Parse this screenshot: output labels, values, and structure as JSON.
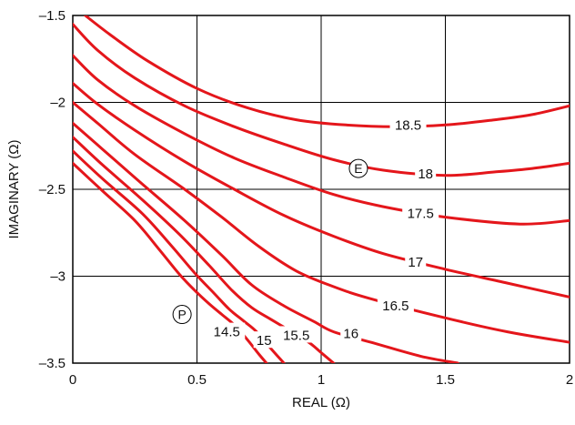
{
  "chart_data": {
    "type": "contour",
    "xlabel": "REAL (Ω)",
    "ylabel": "IMAGINARY (Ω)",
    "xlim": [
      0,
      2
    ],
    "ylim": [
      -3.5,
      -1.5
    ],
    "x_ticks": [
      0,
      0.5,
      1,
      1.5,
      2
    ],
    "x_tick_labels": [
      "0",
      "0.5",
      "1",
      "1.5",
      "2"
    ],
    "y_ticks": [
      -1.5,
      -2,
      -2.5,
      -3,
      -3.5
    ],
    "y_tick_labels": [
      "–1.5",
      "–2",
      "–2.5",
      "–3",
      "–3.5"
    ],
    "grid": true,
    "line_color": "#e4161b",
    "contours": [
      {
        "level": "18.5",
        "label_at": [
          1.35,
          -2.13
        ],
        "points": [
          [
            0.05,
            -1.5
          ],
          [
            0.15,
            -1.61
          ],
          [
            0.3,
            -1.76
          ],
          [
            0.5,
            -1.92
          ],
          [
            0.7,
            -2.03
          ],
          [
            0.9,
            -2.1
          ],
          [
            1.1,
            -2.13
          ],
          [
            1.3,
            -2.14
          ],
          [
            1.5,
            -2.13
          ],
          [
            1.7,
            -2.1
          ],
          [
            1.85,
            -2.07
          ],
          [
            2.0,
            -2.02
          ]
        ]
      },
      {
        "level": "18",
        "label_at": [
          1.42,
          -2.41
        ],
        "points": [
          [
            0,
            -1.55
          ],
          [
            0.1,
            -1.7
          ],
          [
            0.25,
            -1.86
          ],
          [
            0.45,
            -2.02
          ],
          [
            0.65,
            -2.14
          ],
          [
            0.85,
            -2.24
          ],
          [
            1.05,
            -2.33
          ],
          [
            1.25,
            -2.39
          ],
          [
            1.5,
            -2.42
          ],
          [
            1.7,
            -2.4
          ],
          [
            1.85,
            -2.38
          ],
          [
            2.0,
            -2.35
          ]
        ]
      },
      {
        "level": "17.5",
        "label_at": [
          1.4,
          -2.64
        ],
        "points": [
          [
            0,
            -1.73
          ],
          [
            0.1,
            -1.87
          ],
          [
            0.25,
            -2.02
          ],
          [
            0.45,
            -2.18
          ],
          [
            0.65,
            -2.32
          ],
          [
            0.85,
            -2.43
          ],
          [
            1.05,
            -2.53
          ],
          [
            1.25,
            -2.6
          ],
          [
            1.5,
            -2.66
          ],
          [
            1.8,
            -2.7
          ],
          [
            2.0,
            -2.68
          ]
        ]
      },
      {
        "level": "17",
        "label_at": [
          1.38,
          -2.92
        ],
        "points": [
          [
            0,
            -1.89
          ],
          [
            0.1,
            -2.01
          ],
          [
            0.25,
            -2.16
          ],
          [
            0.45,
            -2.34
          ],
          [
            0.65,
            -2.5
          ],
          [
            0.85,
            -2.65
          ],
          [
            1.05,
            -2.77
          ],
          [
            1.25,
            -2.87
          ],
          [
            1.5,
            -2.96
          ],
          [
            1.75,
            -3.04
          ],
          [
            2.0,
            -3.12
          ]
        ]
      },
      {
        "level": "16.5",
        "label_at": [
          1.3,
          -3.17
        ],
        "points": [
          [
            0,
            -2.0
          ],
          [
            0.1,
            -2.12
          ],
          [
            0.25,
            -2.3
          ],
          [
            0.45,
            -2.5
          ],
          [
            0.6,
            -2.66
          ],
          [
            0.75,
            -2.83
          ],
          [
            0.9,
            -2.97
          ],
          [
            1.05,
            -3.06
          ],
          [
            1.2,
            -3.13
          ],
          [
            1.5,
            -3.24
          ],
          [
            1.75,
            -3.32
          ],
          [
            2.0,
            -3.38
          ]
        ]
      },
      {
        "level": "16",
        "label_at": [
          1.12,
          -3.33
        ],
        "points": [
          [
            0,
            -2.12
          ],
          [
            0.12,
            -2.27
          ],
          [
            0.28,
            -2.47
          ],
          [
            0.45,
            -2.68
          ],
          [
            0.6,
            -2.88
          ],
          [
            0.72,
            -3.05
          ],
          [
            0.85,
            -3.17
          ],
          [
            0.97,
            -3.26
          ],
          [
            1.05,
            -3.32
          ],
          [
            1.2,
            -3.38
          ],
          [
            1.4,
            -3.46
          ],
          [
            1.55,
            -3.5
          ]
        ]
      },
      {
        "level": "15.5",
        "label_at": [
          0.9,
          -3.34
        ],
        "points": [
          [
            0,
            -2.2
          ],
          [
            0.12,
            -2.36
          ],
          [
            0.28,
            -2.56
          ],
          [
            0.43,
            -2.76
          ],
          [
            0.55,
            -2.94
          ],
          [
            0.64,
            -3.08
          ],
          [
            0.72,
            -3.18
          ],
          [
            0.8,
            -3.25
          ],
          [
            0.87,
            -3.31
          ],
          [
            0.95,
            -3.38
          ],
          [
            1.0,
            -3.44
          ],
          [
            1.05,
            -3.5
          ]
        ]
      },
      {
        "level": "15",
        "label_at": [
          0.77,
          -3.37
        ],
        "points": [
          [
            0,
            -2.28
          ],
          [
            0.12,
            -2.44
          ],
          [
            0.28,
            -2.64
          ],
          [
            0.4,
            -2.83
          ],
          [
            0.49,
            -2.98
          ],
          [
            0.57,
            -3.1
          ],
          [
            0.63,
            -3.19
          ],
          [
            0.69,
            -3.26
          ],
          [
            0.74,
            -3.32
          ],
          [
            0.8,
            -3.42
          ],
          [
            0.85,
            -3.5
          ]
        ]
      },
      {
        "level": "14.5",
        "label_at": [
          0.62,
          -3.32
        ],
        "points": [
          [
            0,
            -2.35
          ],
          [
            0.12,
            -2.51
          ],
          [
            0.25,
            -2.68
          ],
          [
            0.35,
            -2.85
          ],
          [
            0.43,
            -2.99
          ],
          [
            0.49,
            -3.08
          ],
          [
            0.55,
            -3.16
          ],
          [
            0.6,
            -3.22
          ],
          [
            0.65,
            -3.28
          ],
          [
            0.7,
            -3.36
          ],
          [
            0.75,
            -3.45
          ],
          [
            0.78,
            -3.5
          ]
        ]
      }
    ],
    "markers": [
      {
        "label": "E",
        "x": 1.15,
        "y": -2.38
      },
      {
        "label": "P",
        "x": 0.44,
        "y": -3.22
      }
    ]
  }
}
